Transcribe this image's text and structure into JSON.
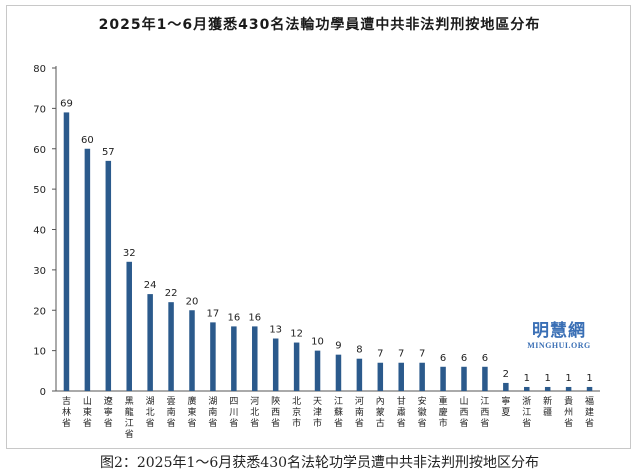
{
  "chart_data": {
    "type": "bar",
    "title": "2025年1～6月獲悉430名法輪功學員遭中共非法判刑按地區分布",
    "xlabel": "",
    "ylabel": "",
    "ylim": [
      0,
      80
    ],
    "yticks": [
      0,
      10,
      20,
      30,
      40,
      50,
      60,
      70,
      80
    ],
    "grid": false,
    "legend": "none",
    "bar_color": "#2b5a8c",
    "categories": [
      "吉林省",
      "山東省",
      "遼寧省",
      "黑龍江省",
      "湖北省",
      "雲南省",
      "廣東省",
      "湖南省",
      "四川省",
      "河北省",
      "陝西省",
      "北京市",
      "天津市",
      "江蘇省",
      "河南省",
      "內蒙古",
      "甘肅省",
      "安徽省",
      "重慶市",
      "山西省",
      "江西省",
      "寧夏",
      "浙江省",
      "新疆",
      "貴州省",
      "福建省"
    ],
    "values": [
      69,
      60,
      57,
      32,
      24,
      22,
      20,
      17,
      16,
      16,
      13,
      12,
      10,
      9,
      8,
      7,
      7,
      7,
      6,
      6,
      6,
      2,
      1,
      1,
      1,
      1
    ]
  },
  "watermark": {
    "cn": "明慧網",
    "en": "MINGHUI.ORG"
  },
  "caption": "图2：2025年1～6月获悉430名法轮功学员遭中共非法判刑按地区分布"
}
